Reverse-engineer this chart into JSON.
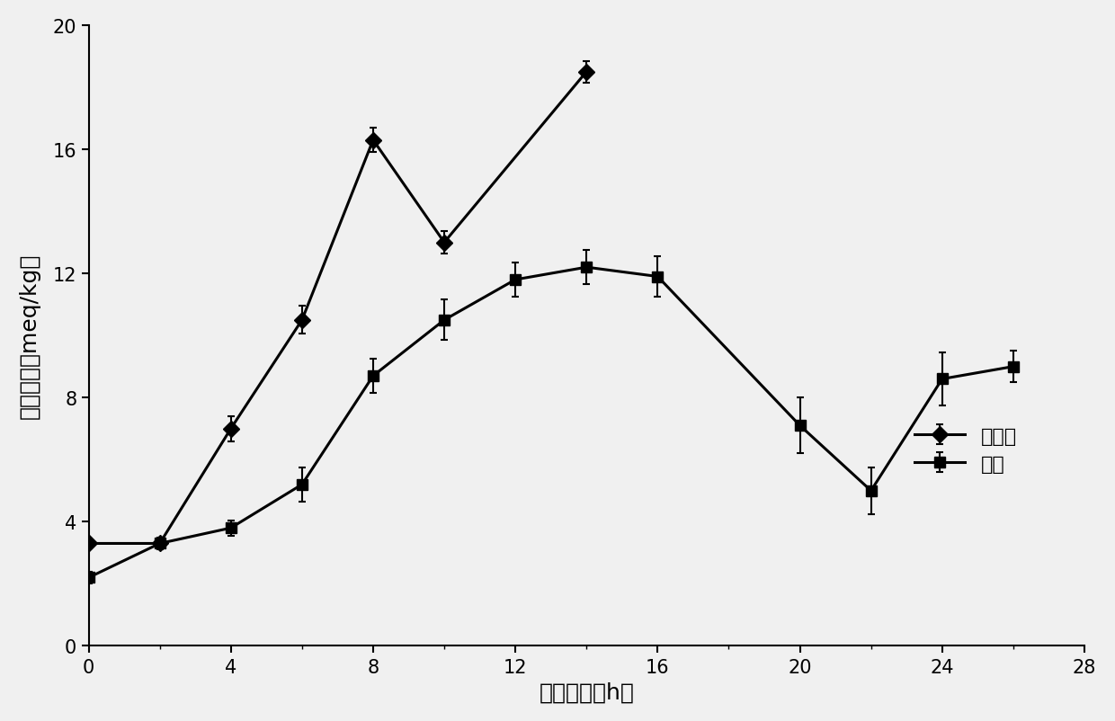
{
  "title": "",
  "xlabel": "煎炸时间（h）",
  "ylabel": "过氧化値（meq/kg）",
  "xlim": [
    0,
    28
  ],
  "ylim": [
    0,
    20
  ],
  "xticks": [
    0,
    4,
    8,
    12,
    16,
    20,
    24,
    28
  ],
  "yticks": [
    0,
    4,
    8,
    12,
    16,
    20
  ],
  "series1_name": "菜籽油",
  "series1_x": [
    0,
    2,
    4,
    6,
    8,
    10,
    14
  ],
  "series1_y": [
    3.3,
    3.3,
    7.0,
    10.5,
    16.3,
    13.0,
    18.5
  ],
  "series1_yerr": [
    0.15,
    0.15,
    0.4,
    0.45,
    0.4,
    0.35,
    0.35
  ],
  "series1_color": "#000000",
  "series1_marker": "D",
  "series1_markersize": 9,
  "series2_name": "茶油",
  "series2_x": [
    0,
    2,
    4,
    6,
    8,
    10,
    12,
    14,
    16,
    20,
    22,
    24,
    26
  ],
  "series2_y": [
    2.2,
    3.3,
    3.8,
    5.2,
    8.7,
    10.5,
    11.8,
    12.2,
    11.9,
    7.1,
    5.0,
    8.6,
    9.0
  ],
  "series2_yerr": [
    0.2,
    0.2,
    0.25,
    0.55,
    0.55,
    0.65,
    0.55,
    0.55,
    0.65,
    0.9,
    0.75,
    0.85,
    0.5
  ],
  "series2_color": "#000000",
  "series2_marker": "s",
  "series2_markersize": 9,
  "line_width": 2.2,
  "background_color": "#f0f0f0",
  "capsize": 3,
  "capthick": 1.5,
  "elinewidth": 1.5
}
